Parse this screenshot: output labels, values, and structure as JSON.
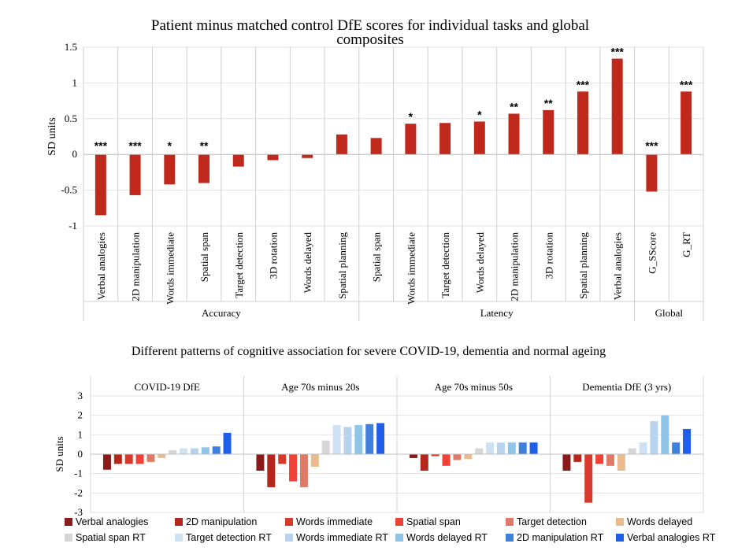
{
  "chart_data": [
    {
      "type": "bar",
      "title": "Patient minus matched control DfE scores for individual tasks and global composites",
      "title_lines": [
        "Patient minus matched control DfE scores for individual tasks and global",
        "composites"
      ],
      "ylabel": "SD units",
      "ylim": [
        -1,
        1.5
      ],
      "yticks": [
        "1.5",
        "1",
        "0.5",
        "0",
        "-0.5",
        "-1"
      ],
      "ytick_values": [
        1.5,
        1,
        0.5,
        0,
        -0.5,
        -1
      ],
      "grid": true,
      "color": "#c0281c",
      "categories": [
        "Verbal analogies",
        "2D manipulation",
        "Words immediate",
        "Spatial span",
        "Target detection",
        "3D rotation",
        "Words delayed",
        "Spatial planning",
        "Spatial span",
        "Words immediate",
        "Target detection",
        "Words delayed",
        "2D manipulation",
        "3D rotation",
        "Spatial planning",
        "Verbal analogies",
        "G_SScore",
        "G_RT"
      ],
      "values": [
        -0.85,
        -0.57,
        -0.42,
        -0.4,
        -0.17,
        -0.08,
        -0.05,
        0.28,
        0.23,
        0.43,
        0.44,
        0.46,
        0.57,
        0.62,
        0.88,
        1.34,
        -0.52,
        0.88
      ],
      "significance": [
        "***",
        "***",
        "*",
        "**",
        "",
        "",
        "",
        "",
        "",
        "*",
        "",
        "*",
        "**",
        "**",
        "***",
        "***",
        "***",
        "***"
      ],
      "groups": [
        {
          "label": "Accuracy",
          "count": 8
        },
        {
          "label": "Latency",
          "count": 8
        },
        {
          "label": "Global",
          "count": 2
        }
      ]
    },
    {
      "type": "bar",
      "title": "Different patterns of cognitive association for severe COVID-19, dementia and normal ageing",
      "ylabel": "SD units",
      "ylim": [
        -3,
        3
      ],
      "yticks": [
        "3",
        "2",
        "1",
        "0",
        "-1",
        "-2",
        "-3"
      ],
      "ytick_values": [
        3,
        2,
        1,
        0,
        -1,
        -2,
        -3
      ],
      "grid": true,
      "series_names": [
        "Verbal analogies",
        "2D manipulation",
        "Words immediate",
        "Spatial span",
        "Target detection",
        "Words delayed",
        "Spatial span RT",
        "Target detection RT",
        "Words immediate RT",
        "Words delayed RT",
        "2D manipulation RT",
        "Verbal analogies RT"
      ],
      "series_colors": [
        "#8b1a1a",
        "#b5271d",
        "#d8392b",
        "#ef4135",
        "#e07a66",
        "#e9bb8d",
        "#d6d6d6",
        "#cfe2f3",
        "#b7d3ee",
        "#8ec5e8",
        "#3f7fde",
        "#1f5fe8"
      ],
      "panels": [
        {
          "title": "COVID-19 DfE",
          "values": [
            -0.8,
            -0.5,
            -0.5,
            -0.5,
            -0.4,
            -0.2,
            0.2,
            0.3,
            0.3,
            0.35,
            0.4,
            1.1
          ]
        },
        {
          "title": "Age 70s minus 20s",
          "values": [
            -0.85,
            -1.7,
            -0.5,
            -1.4,
            -1.7,
            -0.65,
            0.7,
            1.5,
            1.4,
            1.5,
            1.55,
            1.6
          ]
        },
        {
          "title": "Age 70s minus 50s",
          "values": [
            -0.2,
            -0.85,
            -0.1,
            -0.6,
            -0.3,
            -0.25,
            0.3,
            0.6,
            0.6,
            0.6,
            0.6,
            0.6
          ]
        },
        {
          "title": "Dementia DfE (3 yrs)",
          "values": [
            -0.85,
            -0.4,
            -2.5,
            -0.5,
            -0.6,
            -0.85,
            0.3,
            0.6,
            1.7,
            2.0,
            0.6,
            1.3
          ]
        }
      ],
      "legend": [
        [
          "Verbal analogies",
          "2D manipulation",
          "Words immediate",
          "Spatial span",
          "Target detection",
          "Words delayed"
        ],
        [
          "Spatial span RT",
          "Target detection RT",
          "Words immediate RT",
          "Words delayed RT",
          "2D manipulation RT",
          "Verbal analogies RT"
        ]
      ]
    }
  ]
}
